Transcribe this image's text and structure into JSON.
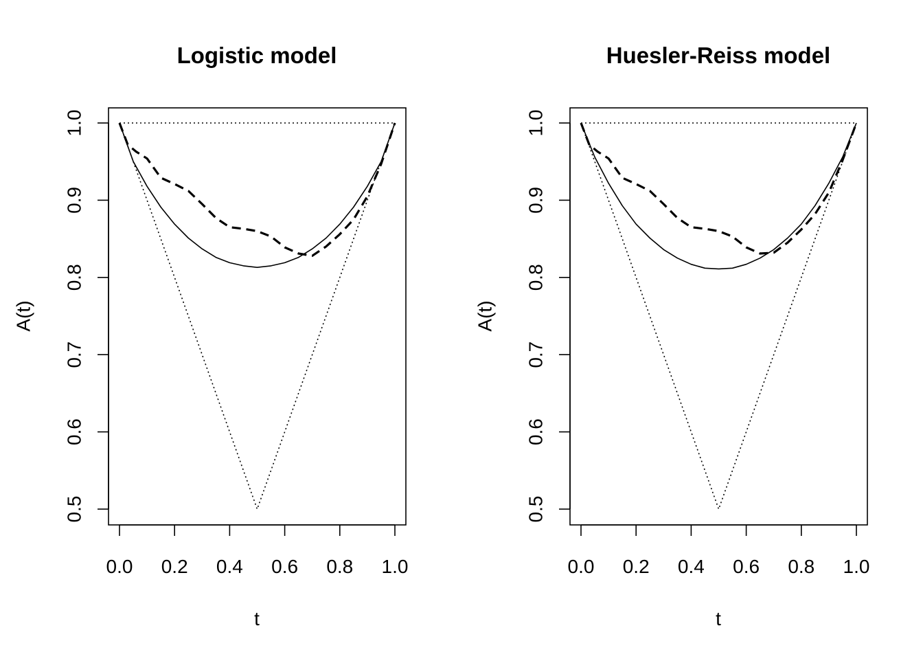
{
  "chart_data": [
    {
      "type": "line",
      "title": "Logistic model",
      "xlabel": "t",
      "ylabel": "A(t)",
      "xlim": [
        0,
        1
      ],
      "ylim": [
        0.5,
        1.0
      ],
      "xticks": [
        "0.0",
        "0.2",
        "0.4",
        "0.6",
        "0.8",
        "1.0"
      ],
      "yticks": [
        "0.5",
        "0.6",
        "0.7",
        "0.8",
        "0.9",
        "1.0"
      ],
      "grid": false,
      "legend": "none",
      "series": [
        {
          "style": "dotted",
          "x": [
            0,
            1
          ],
          "y": [
            1.0,
            1.0
          ]
        },
        {
          "style": "dotted",
          "x": [
            0,
            0.5,
            1
          ],
          "y": [
            1.0,
            0.5,
            1.0
          ]
        },
        {
          "style": "solid",
          "x": [
            0,
            0.05,
            0.1,
            0.15,
            0.2,
            0.25,
            0.3,
            0.35,
            0.4,
            0.45,
            0.5,
            0.55,
            0.6,
            0.65,
            0.7,
            0.75,
            0.8,
            0.85,
            0.9,
            0.95,
            1
          ],
          "y": [
            1.0,
            0.95,
            0.918,
            0.891,
            0.869,
            0.851,
            0.837,
            0.826,
            0.819,
            0.815,
            0.813,
            0.815,
            0.819,
            0.826,
            0.837,
            0.851,
            0.869,
            0.891,
            0.918,
            0.95,
            1.0
          ]
        },
        {
          "style": "dashed",
          "x": [
            0,
            0.03,
            0.06,
            0.1,
            0.15,
            0.2,
            0.25,
            0.3,
            0.35,
            0.4,
            0.45,
            0.5,
            0.55,
            0.6,
            0.65,
            0.7,
            0.75,
            0.8,
            0.85,
            0.9,
            0.95,
            1
          ],
          "y": [
            1.0,
            0.972,
            0.963,
            0.954,
            0.929,
            0.921,
            0.912,
            0.895,
            0.877,
            0.865,
            0.863,
            0.86,
            0.853,
            0.839,
            0.831,
            0.828,
            0.84,
            0.856,
            0.875,
            0.905,
            0.947,
            1.0
          ]
        }
      ]
    },
    {
      "type": "line",
      "title": "Huesler-Reiss model",
      "xlabel": "t",
      "ylabel": "A(t)",
      "xlim": [
        0,
        1
      ],
      "ylim": [
        0.5,
        1.0
      ],
      "xticks": [
        "0.0",
        "0.2",
        "0.4",
        "0.6",
        "0.8",
        "1.0"
      ],
      "yticks": [
        "0.5",
        "0.6",
        "0.7",
        "0.8",
        "0.9",
        "1.0"
      ],
      "grid": false,
      "legend": "none",
      "series": [
        {
          "style": "dotted",
          "x": [
            0,
            1
          ],
          "y": [
            1.0,
            1.0
          ]
        },
        {
          "style": "dotted",
          "x": [
            0,
            0.5,
            1
          ],
          "y": [
            1.0,
            0.5,
            1.0
          ]
        },
        {
          "style": "solid",
          "x": [
            0,
            0.05,
            0.1,
            0.15,
            0.2,
            0.25,
            0.3,
            0.35,
            0.4,
            0.45,
            0.5,
            0.55,
            0.6,
            0.65,
            0.7,
            0.75,
            0.8,
            0.85,
            0.9,
            0.95,
            1
          ],
          "y": [
            1.0,
            0.956,
            0.922,
            0.893,
            0.869,
            0.851,
            0.836,
            0.825,
            0.817,
            0.812,
            0.811,
            0.812,
            0.817,
            0.825,
            0.836,
            0.851,
            0.869,
            0.893,
            0.922,
            0.956,
            1.0
          ]
        },
        {
          "style": "dashed",
          "x": [
            0,
            0.03,
            0.06,
            0.1,
            0.15,
            0.2,
            0.25,
            0.3,
            0.35,
            0.4,
            0.45,
            0.5,
            0.55,
            0.6,
            0.65,
            0.7,
            0.75,
            0.8,
            0.85,
            0.9,
            0.95,
            1
          ],
          "y": [
            1.0,
            0.972,
            0.963,
            0.954,
            0.929,
            0.921,
            0.912,
            0.895,
            0.877,
            0.865,
            0.863,
            0.86,
            0.853,
            0.839,
            0.831,
            0.832,
            0.845,
            0.862,
            0.882,
            0.91,
            0.952,
            1.0
          ]
        }
      ]
    }
  ]
}
